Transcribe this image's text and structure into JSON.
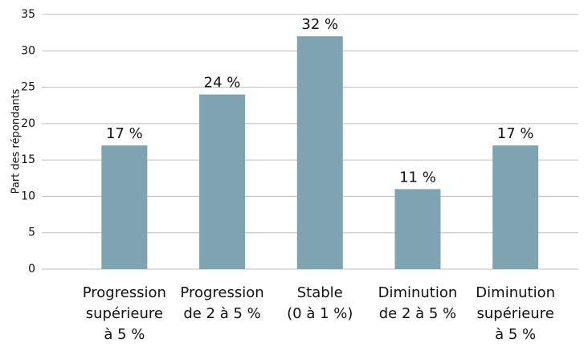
{
  "chart_data": {
    "type": "bar",
    "y_label": "Part des répondants",
    "categories": [
      [
        "Progression",
        "supérieure",
        "à 5 %"
      ],
      [
        "Progression",
        "de 2 à 5 %"
      ],
      [
        "Stable",
        "(0 à 1 %)"
      ],
      [
        "Diminution",
        "de 2 à 5 %"
      ],
      [
        "Diminution",
        "supérieure",
        "à 5 %"
      ]
    ],
    "values": [
      17,
      24,
      32,
      11,
      17
    ],
    "value_labels": [
      "17 %",
      "24 %",
      "32 %",
      "11 %",
      "17 %"
    ],
    "color": "#7fa3b0",
    "ylim": [
      0,
      35
    ],
    "yticks": [
      0,
      5,
      10,
      15,
      20,
      25,
      30,
      35
    ],
    "grid": true
  }
}
